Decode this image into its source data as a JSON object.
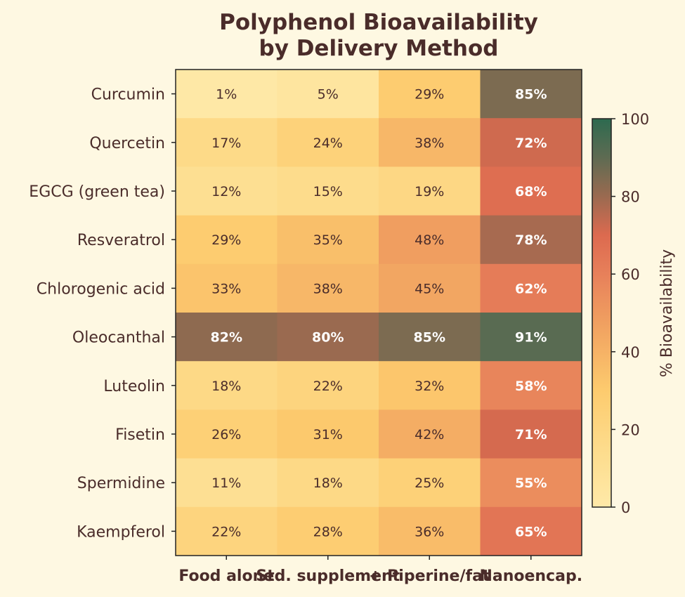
{
  "chart_data": {
    "type": "heatmap",
    "title": "Polyphenol Bioavailability\nby Delivery Method",
    "title_lines": [
      "Polyphenol Bioavailability",
      "by Delivery Method"
    ],
    "columns": [
      "Food alone",
      "Std. supplement",
      "+ Piperine/fat",
      "Nanoencap."
    ],
    "rows": [
      "Curcumin",
      "Quercetin",
      "EGCG (green tea)",
      "Resveratrol",
      "Chlorogenic acid",
      "Oleocanthal",
      "Luteolin",
      "Fisetin",
      "Spermidine",
      "Kaempferol"
    ],
    "values": [
      [
        1,
        5,
        29,
        85
      ],
      [
        17,
        24,
        38,
        72
      ],
      [
        12,
        15,
        19,
        68
      ],
      [
        29,
        35,
        48,
        78
      ],
      [
        33,
        38,
        45,
        62
      ],
      [
        82,
        80,
        85,
        91
      ],
      [
        18,
        22,
        32,
        58
      ],
      [
        26,
        31,
        42,
        71
      ],
      [
        11,
        18,
        25,
        55
      ],
      [
        22,
        28,
        36,
        65
      ]
    ],
    "value_format": "%",
    "colorbar": {
      "label": "% Bioavailability",
      "range": [
        0,
        100
      ],
      "ticks": [
        0,
        20,
        40,
        60,
        80,
        100
      ]
    },
    "colormap": [
      "#fee9a8",
      "#fdd07a",
      "#f5b264",
      "#ea8a5a",
      "#dc6a4f",
      "#9a6a50",
      "#5e6b52",
      "#2d6a4f"
    ]
  }
}
